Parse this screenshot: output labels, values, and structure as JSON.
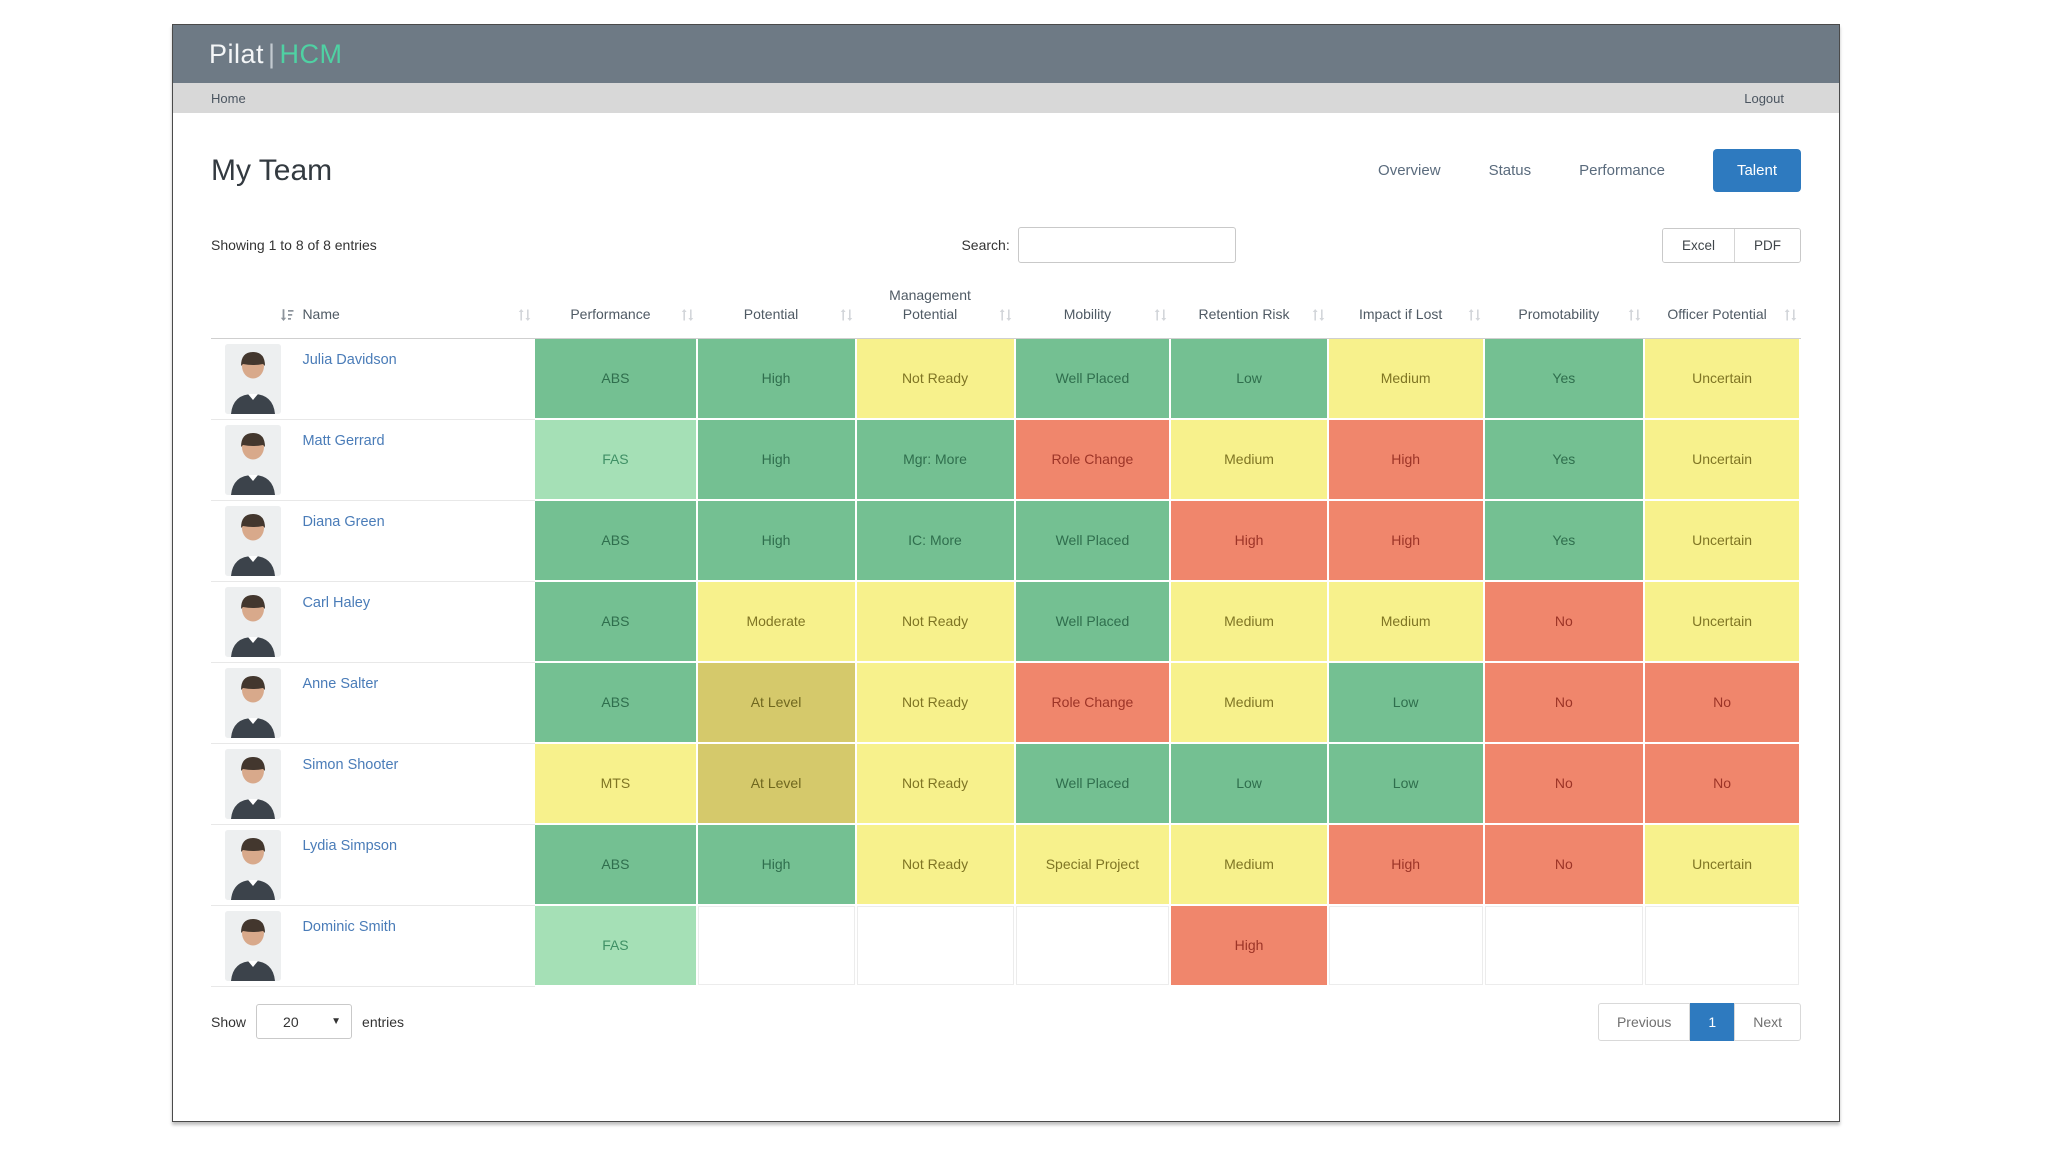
{
  "app": {
    "brand_primary": "Pilat",
    "brand_divider": "|",
    "brand_secondary": "HCM"
  },
  "nav": {
    "home": "Home",
    "logout": "Logout"
  },
  "page": {
    "title": "My Team"
  },
  "tabs": {
    "items": [
      {
        "label": "Overview",
        "active": false
      },
      {
        "label": "Status",
        "active": false
      },
      {
        "label": "Performance",
        "active": false
      },
      {
        "label": "Talent",
        "active": true
      }
    ]
  },
  "toolbar": {
    "showing": "Showing 1 to 8 of 8 entries",
    "search_label": "Search:",
    "search_value": "",
    "export_buttons": [
      {
        "label": "Excel"
      },
      {
        "label": "PDF"
      }
    ]
  },
  "table": {
    "columns": [
      {
        "key": "photo",
        "label": "",
        "sort": "active-asc"
      },
      {
        "key": "name",
        "label": "Name",
        "sort": "both"
      },
      {
        "key": "performance",
        "label": "Performance",
        "sort": "both"
      },
      {
        "key": "potential",
        "label": "Potential",
        "sort": "both"
      },
      {
        "key": "management_potential",
        "label": "Management Potential",
        "sort": "both"
      },
      {
        "key": "mobility",
        "label": "Mobility",
        "sort": "both"
      },
      {
        "key": "retention_risk",
        "label": "Retention Risk",
        "sort": "both"
      },
      {
        "key": "impact_if_lost",
        "label": "Impact if Lost",
        "sort": "both"
      },
      {
        "key": "promotability",
        "label": "Promotability",
        "sort": "both"
      },
      {
        "key": "officer_potential",
        "label": "Officer Potential",
        "sort": "both"
      }
    ],
    "rows": [
      {
        "name": "Julia Davidson",
        "cells": [
          {
            "text": "ABS",
            "color": "green"
          },
          {
            "text": "High",
            "color": "green"
          },
          {
            "text": "Not Ready",
            "color": "yellow"
          },
          {
            "text": "Well Placed",
            "color": "green"
          },
          {
            "text": "Low",
            "color": "green"
          },
          {
            "text": "Medium",
            "color": "yellow"
          },
          {
            "text": "Yes",
            "color": "green"
          },
          {
            "text": "Uncertain",
            "color": "yellow"
          }
        ]
      },
      {
        "name": "Matt Gerrard",
        "cells": [
          {
            "text": "FAS",
            "color": "lightgreen"
          },
          {
            "text": "High",
            "color": "green"
          },
          {
            "text": "Mgr: More",
            "color": "green"
          },
          {
            "text": "Role Change",
            "color": "red"
          },
          {
            "text": "Medium",
            "color": "yellow"
          },
          {
            "text": "High",
            "color": "red"
          },
          {
            "text": "Yes",
            "color": "green"
          },
          {
            "text": "Uncertain",
            "color": "yellow"
          }
        ]
      },
      {
        "name": "Diana Green",
        "cells": [
          {
            "text": "ABS",
            "color": "green"
          },
          {
            "text": "High",
            "color": "green"
          },
          {
            "text": "IC: More",
            "color": "green"
          },
          {
            "text": "Well Placed",
            "color": "green"
          },
          {
            "text": "High",
            "color": "red"
          },
          {
            "text": "High",
            "color": "red"
          },
          {
            "text": "Yes",
            "color": "green"
          },
          {
            "text": "Uncertain",
            "color": "yellow"
          }
        ]
      },
      {
        "name": "Carl Haley",
        "cells": [
          {
            "text": "ABS",
            "color": "green"
          },
          {
            "text": "Moderate",
            "color": "yellow"
          },
          {
            "text": "Not Ready",
            "color": "yellow"
          },
          {
            "text": "Well Placed",
            "color": "green"
          },
          {
            "text": "Medium",
            "color": "yellow"
          },
          {
            "text": "Medium",
            "color": "yellow"
          },
          {
            "text": "No",
            "color": "red"
          },
          {
            "text": "Uncertain",
            "color": "yellow"
          }
        ]
      },
      {
        "name": "Anne Salter",
        "cells": [
          {
            "text": "ABS",
            "color": "green"
          },
          {
            "text": "At Level",
            "color": "olive"
          },
          {
            "text": "Not Ready",
            "color": "yellow"
          },
          {
            "text": "Role Change",
            "color": "red"
          },
          {
            "text": "Medium",
            "color": "yellow"
          },
          {
            "text": "Low",
            "color": "green"
          },
          {
            "text": "No",
            "color": "red"
          },
          {
            "text": "No",
            "color": "red"
          }
        ]
      },
      {
        "name": "Simon Shooter",
        "cells": [
          {
            "text": "MTS",
            "color": "yellow"
          },
          {
            "text": "At Level",
            "color": "olive"
          },
          {
            "text": "Not Ready",
            "color": "yellow"
          },
          {
            "text": "Well Placed",
            "color": "green"
          },
          {
            "text": "Low",
            "color": "green"
          },
          {
            "text": "Low",
            "color": "green"
          },
          {
            "text": "No",
            "color": "red"
          },
          {
            "text": "No",
            "color": "red"
          }
        ]
      },
      {
        "name": "Lydia Simpson",
        "cells": [
          {
            "text": "ABS",
            "color": "green"
          },
          {
            "text": "High",
            "color": "green"
          },
          {
            "text": "Not Ready",
            "color": "yellow"
          },
          {
            "text": "Special Project",
            "color": "yellow"
          },
          {
            "text": "Medium",
            "color": "yellow"
          },
          {
            "text": "High",
            "color": "red"
          },
          {
            "text": "No",
            "color": "red"
          },
          {
            "text": "Uncertain",
            "color": "yellow"
          }
        ]
      },
      {
        "name": "Dominic Smith",
        "cells": [
          {
            "text": "FAS",
            "color": "lightgreen"
          },
          {
            "text": "",
            "color": "empty"
          },
          {
            "text": "",
            "color": "empty"
          },
          {
            "text": "",
            "color": "empty"
          },
          {
            "text": "High",
            "color": "red"
          },
          {
            "text": "",
            "color": "empty"
          },
          {
            "text": "",
            "color": "empty"
          },
          {
            "text": "",
            "color": "empty"
          }
        ]
      }
    ]
  },
  "footer": {
    "show_label": "Show",
    "page_size": "20",
    "entries_label": "entries",
    "pagination": {
      "previous": "Previous",
      "current": "1",
      "next": "Next"
    }
  },
  "colors": {
    "appbar_gray": "#6e7a85",
    "brand_teal": "#4fd1a3",
    "accent_blue": "#2e7abf",
    "cell_green": "#74c092",
    "cell_light_green": "#a5e0b6",
    "cell_yellow": "#f7f18c",
    "cell_olive": "#d5c96b",
    "cell_red": "#f0866c"
  }
}
